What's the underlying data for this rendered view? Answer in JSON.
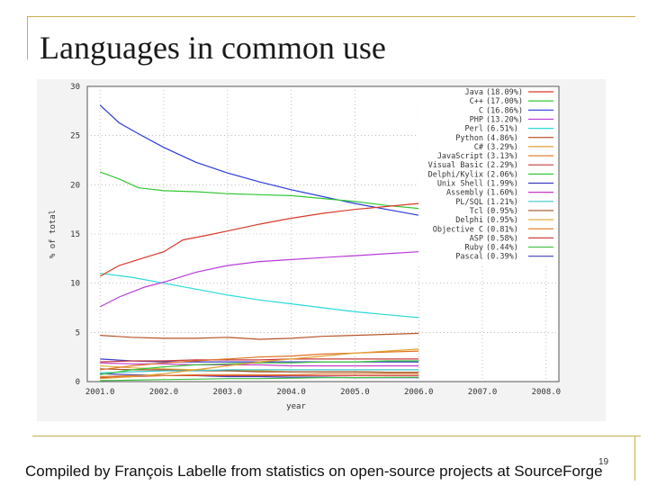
{
  "slide": {
    "title": "Languages in common use",
    "caption": "Compiled by François Labelle from statistics on open-source projects at SourceForge",
    "page_number": "19",
    "accent_color": "#c8ae4e"
  },
  "chart_data": {
    "type": "line",
    "title": "",
    "xlabel": "year",
    "ylabel": "% of total",
    "xlim": [
      2000.8,
      2008.2
    ],
    "ylim": [
      0,
      30
    ],
    "xticks": [
      "2001.0",
      "2002.0",
      "2003.0",
      "2004.0",
      "2005.0",
      "2006.0",
      "2007.0",
      "2008.0"
    ],
    "yticks": [
      "0",
      "5",
      "10",
      "15",
      "20",
      "25",
      "30"
    ],
    "grid": true,
    "legend_position": "top-right",
    "series": [
      {
        "name": "Java",
        "share": "(18.09%)",
        "color": "#d93a2a",
        "points": [
          [
            2001.0,
            10.7
          ],
          [
            2001.3,
            11.8
          ],
          [
            2001.7,
            12.6
          ],
          [
            2002.0,
            13.2
          ],
          [
            2002.3,
            14.4
          ],
          [
            2002.7,
            14.9
          ],
          [
            2003.0,
            15.3
          ],
          [
            2003.5,
            16.0
          ],
          [
            2004.0,
            16.6
          ],
          [
            2004.5,
            17.1
          ],
          [
            2005.0,
            17.5
          ],
          [
            2005.5,
            17.8
          ],
          [
            2006.0,
            18.1
          ]
        ]
      },
      {
        "name": "C++",
        "share": "(17.00%)",
        "color": "#32c832",
        "points": [
          [
            2001.0,
            21.3
          ],
          [
            2001.3,
            20.6
          ],
          [
            2001.6,
            19.7
          ],
          [
            2002.0,
            19.4
          ],
          [
            2002.5,
            19.3
          ],
          [
            2003.0,
            19.1
          ],
          [
            2003.5,
            19.0
          ],
          [
            2004.0,
            18.9
          ],
          [
            2004.5,
            18.6
          ],
          [
            2005.0,
            18.3
          ],
          [
            2005.5,
            17.9
          ],
          [
            2006.0,
            17.6
          ]
        ]
      },
      {
        "name": "C",
        "share": "(16.86%)",
        "color": "#2a3ad9",
        "points": [
          [
            2001.0,
            28.1
          ],
          [
            2001.3,
            26.3
          ],
          [
            2001.6,
            25.2
          ],
          [
            2002.0,
            23.8
          ],
          [
            2002.5,
            22.3
          ],
          [
            2003.0,
            21.2
          ],
          [
            2003.5,
            20.3
          ],
          [
            2004.0,
            19.5
          ],
          [
            2004.5,
            18.8
          ],
          [
            2005.0,
            18.1
          ],
          [
            2005.5,
            17.5
          ],
          [
            2006.0,
            16.9
          ]
        ]
      },
      {
        "name": "PHP",
        "share": "(13.20%)",
        "color": "#b93ad9",
        "points": [
          [
            2001.0,
            7.6
          ],
          [
            2001.3,
            8.6
          ],
          [
            2001.7,
            9.6
          ],
          [
            2002.0,
            10.1
          ],
          [
            2002.5,
            11.1
          ],
          [
            2003.0,
            11.8
          ],
          [
            2003.5,
            12.2
          ],
          [
            2004.0,
            12.4
          ],
          [
            2004.5,
            12.6
          ],
          [
            2005.0,
            12.8
          ],
          [
            2005.5,
            13.0
          ],
          [
            2006.0,
            13.2
          ]
        ]
      },
      {
        "name": "Perl",
        "share": "(6.51%)",
        "color": "#2ad9d9",
        "points": [
          [
            2001.0,
            11.0
          ],
          [
            2001.5,
            10.6
          ],
          [
            2002.0,
            10.0
          ],
          [
            2002.5,
            9.4
          ],
          [
            2003.0,
            8.8
          ],
          [
            2003.5,
            8.3
          ],
          [
            2004.0,
            7.9
          ],
          [
            2004.5,
            7.5
          ],
          [
            2005.0,
            7.1
          ],
          [
            2005.5,
            6.8
          ],
          [
            2006.0,
            6.5
          ]
        ]
      },
      {
        "name": "Python",
        "share": "(4.86%)",
        "color": "#b8552a",
        "points": [
          [
            2001.0,
            4.7
          ],
          [
            2001.5,
            4.5
          ],
          [
            2002.0,
            4.4
          ],
          [
            2002.5,
            4.4
          ],
          [
            2003.0,
            4.5
          ],
          [
            2003.5,
            4.3
          ],
          [
            2004.0,
            4.4
          ],
          [
            2004.5,
            4.6
          ],
          [
            2005.0,
            4.7
          ],
          [
            2005.5,
            4.8
          ],
          [
            2006.0,
            4.9
          ]
        ]
      },
      {
        "name": "C#",
        "share": "(3.29%)",
        "color": "#e0a030",
        "points": [
          [
            2001.0,
            0.3
          ],
          [
            2001.5,
            0.5
          ],
          [
            2002.0,
            0.8
          ],
          [
            2002.5,
            1.2
          ],
          [
            2003.0,
            1.6
          ],
          [
            2003.5,
            2.0
          ],
          [
            2004.0,
            2.3
          ],
          [
            2004.5,
            2.6
          ],
          [
            2005.0,
            2.9
          ],
          [
            2005.5,
            3.1
          ],
          [
            2006.0,
            3.3
          ]
        ]
      },
      {
        "name": "JavaScript",
        "share": "(3.13%)",
        "color": "#e07020",
        "points": [
          [
            2001.0,
            1.2
          ],
          [
            2001.5,
            1.6
          ],
          [
            2002.0,
            1.9
          ],
          [
            2002.5,
            2.1
          ],
          [
            2003.0,
            2.3
          ],
          [
            2003.5,
            2.5
          ],
          [
            2004.0,
            2.6
          ],
          [
            2004.5,
            2.8
          ],
          [
            2005.0,
            2.9
          ],
          [
            2005.5,
            3.0
          ],
          [
            2006.0,
            3.1
          ]
        ]
      },
      {
        "name": "Visual Basic",
        "share": "(2.29%)",
        "color": "#c83a3a",
        "points": [
          [
            2001.0,
            2.0
          ],
          [
            2001.5,
            2.1
          ],
          [
            2002.0,
            2.1
          ],
          [
            2002.5,
            2.2
          ],
          [
            2003.0,
            2.2
          ],
          [
            2003.5,
            2.2
          ],
          [
            2004.0,
            2.3
          ],
          [
            2004.5,
            2.3
          ],
          [
            2005.0,
            2.3
          ],
          [
            2005.5,
            2.3
          ],
          [
            2006.0,
            2.3
          ]
        ]
      },
      {
        "name": "Delphi/Kylix",
        "share": "(2.06%)",
        "color": "#3ac83a",
        "points": [
          [
            2001.0,
            0.7
          ],
          [
            2001.5,
            1.2
          ],
          [
            2002.0,
            1.5
          ],
          [
            2002.5,
            1.7
          ],
          [
            2003.0,
            1.8
          ],
          [
            2003.5,
            1.9
          ],
          [
            2004.0,
            1.9
          ],
          [
            2004.5,
            2.0
          ],
          [
            2005.0,
            2.0
          ],
          [
            2005.5,
            2.1
          ],
          [
            2006.0,
            2.1
          ]
        ]
      },
      {
        "name": "Unix Shell",
        "share": "(1.99%)",
        "color": "#3a3ac8",
        "points": [
          [
            2001.0,
            2.3
          ],
          [
            2001.5,
            2.1
          ],
          [
            2002.0,
            2.0
          ],
          [
            2002.5,
            2.0
          ],
          [
            2003.0,
            2.0
          ],
          [
            2003.5,
            2.0
          ],
          [
            2004.0,
            2.0
          ],
          [
            2004.5,
            2.0
          ],
          [
            2005.0,
            2.0
          ],
          [
            2005.5,
            2.0
          ],
          [
            2006.0,
            2.0
          ]
        ]
      },
      {
        "name": "Assembly",
        "share": "(1.60%)",
        "color": "#c83ac8",
        "points": [
          [
            2001.0,
            1.9
          ],
          [
            2001.5,
            1.8
          ],
          [
            2002.0,
            1.8
          ],
          [
            2002.5,
            1.7
          ],
          [
            2003.0,
            1.7
          ],
          [
            2003.5,
            1.7
          ],
          [
            2004.0,
            1.6
          ],
          [
            2004.5,
            1.6
          ],
          [
            2005.0,
            1.6
          ],
          [
            2005.5,
            1.6
          ],
          [
            2006.0,
            1.6
          ]
        ]
      },
      {
        "name": "PL/SQL",
        "share": "(1.21%)",
        "color": "#3ac8c8",
        "points": [
          [
            2001.0,
            0.9
          ],
          [
            2001.5,
            1.0
          ],
          [
            2002.0,
            1.1
          ],
          [
            2002.5,
            1.1
          ],
          [
            2003.0,
            1.2
          ],
          [
            2003.5,
            1.2
          ],
          [
            2004.0,
            1.2
          ],
          [
            2004.5,
            1.2
          ],
          [
            2005.0,
            1.2
          ],
          [
            2005.5,
            1.2
          ],
          [
            2006.0,
            1.2
          ]
        ]
      },
      {
        "name": "Tcl",
        "share": "(0.95%)",
        "color": "#a0502a",
        "points": [
          [
            2001.0,
            1.3
          ],
          [
            2001.5,
            1.2
          ],
          [
            2002.0,
            1.2
          ],
          [
            2002.5,
            1.1
          ],
          [
            2003.0,
            1.1
          ],
          [
            2003.5,
            1.0
          ],
          [
            2004.0,
            1.0
          ],
          [
            2004.5,
            1.0
          ],
          [
            2005.0,
            1.0
          ],
          [
            2005.5,
            0.95
          ],
          [
            2006.0,
            0.95
          ]
        ]
      },
      {
        "name": "Delphi",
        "share": "(0.95%)",
        "color": "#e0b040",
        "points": [
          [
            2001.0,
            1.6
          ],
          [
            2001.5,
            1.4
          ],
          [
            2002.0,
            1.3
          ],
          [
            2002.5,
            1.2
          ],
          [
            2003.0,
            1.1
          ],
          [
            2003.5,
            1.1
          ],
          [
            2004.0,
            1.0
          ],
          [
            2004.5,
            1.0
          ],
          [
            2005.0,
            1.0
          ],
          [
            2005.5,
            0.95
          ],
          [
            2006.0,
            0.95
          ]
        ]
      },
      {
        "name": "Objective C",
        "share": "(0.81%)",
        "color": "#e08030",
        "points": [
          [
            2001.0,
            0.5
          ],
          [
            2001.5,
            0.6
          ],
          [
            2002.0,
            0.6
          ],
          [
            2002.5,
            0.7
          ],
          [
            2003.0,
            0.7
          ],
          [
            2003.5,
            0.7
          ],
          [
            2004.0,
            0.7
          ],
          [
            2004.5,
            0.8
          ],
          [
            2005.0,
            0.8
          ],
          [
            2005.5,
            0.8
          ],
          [
            2006.0,
            0.8
          ]
        ]
      },
      {
        "name": "ASP",
        "share": "(0.58%)",
        "color": "#d04040",
        "points": [
          [
            2001.0,
            0.4
          ],
          [
            2001.5,
            0.5
          ],
          [
            2002.0,
            0.6
          ],
          [
            2002.5,
            0.6
          ],
          [
            2003.0,
            0.6
          ],
          [
            2003.5,
            0.6
          ],
          [
            2004.0,
            0.6
          ],
          [
            2004.5,
            0.6
          ],
          [
            2005.0,
            0.6
          ],
          [
            2005.5,
            0.6
          ],
          [
            2006.0,
            0.6
          ]
        ]
      },
      {
        "name": "Ruby",
        "share": "(0.44%)",
        "color": "#40c040",
        "points": [
          [
            2001.0,
            0.1
          ],
          [
            2001.5,
            0.15
          ],
          [
            2002.0,
            0.2
          ],
          [
            2002.5,
            0.25
          ],
          [
            2003.0,
            0.3
          ],
          [
            2003.5,
            0.3
          ],
          [
            2004.0,
            0.35
          ],
          [
            2004.5,
            0.4
          ],
          [
            2005.0,
            0.4
          ],
          [
            2005.5,
            0.42
          ],
          [
            2006.0,
            0.44
          ]
        ]
      },
      {
        "name": "Pascal",
        "share": "(0.39%)",
        "color": "#4040c0",
        "points": [
          [
            2001.0,
            0.8
          ],
          [
            2001.5,
            0.7
          ],
          [
            2002.0,
            0.6
          ],
          [
            2002.5,
            0.6
          ],
          [
            2003.0,
            0.5
          ],
          [
            2003.5,
            0.5
          ],
          [
            2004.0,
            0.45
          ],
          [
            2004.5,
            0.45
          ],
          [
            2005.0,
            0.4
          ],
          [
            2005.5,
            0.4
          ],
          [
            2006.0,
            0.39
          ]
        ]
      }
    ]
  }
}
